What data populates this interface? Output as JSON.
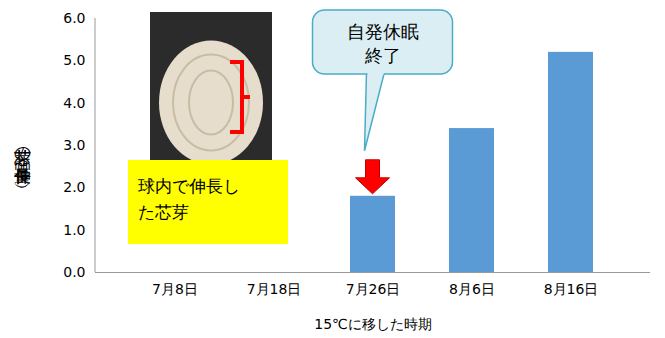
{
  "chart_data": {
    "type": "bar",
    "categories": [
      "7月8日",
      "7月18日",
      "7月26日",
      "8月6日",
      "8月16日"
    ],
    "values": [
      0,
      0,
      1.8,
      3.4,
      5.2
    ],
    "color": "#5b9bd5",
    "ylim": [
      0,
      6
    ],
    "yticks": [
      0,
      1,
      2,
      3,
      4,
      5,
      6
    ],
    "x_label": "15℃に移した時期",
    "y_label": "芯芽の伸長量（㎜）",
    "grid": false,
    "annotations": [
      {
        "text": "自発休眠終了",
        "category": "7月26日"
      },
      {
        "text": "球内で伸長した芯芽"
      }
    ]
  }
}
